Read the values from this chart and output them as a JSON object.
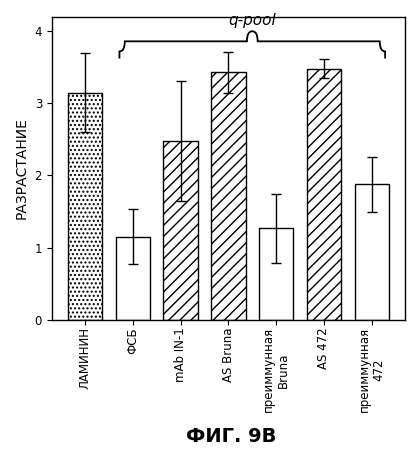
{
  "categories": [
    "ЛАМИНИН",
    "ФСБ",
    "mAb IN-1",
    "AS Bruna",
    "преиммунная\nBruna",
    "AS 472",
    "преиммунная\n472"
  ],
  "values": [
    3.15,
    1.15,
    2.48,
    3.43,
    1.27,
    3.48,
    1.88
  ],
  "errors": [
    0.55,
    0.38,
    0.83,
    0.28,
    0.48,
    0.13,
    0.38
  ],
  "bar_styles": [
    "dots",
    "none",
    "hatch",
    "hatch",
    "none",
    "hatch",
    "none"
  ],
  "title": "q-pool",
  "ylabel": "РАЗРАСТАНИЕ",
  "xlabel": "ФИГ. 9B",
  "ylim": [
    0,
    4.2
  ],
  "yticks": [
    0,
    1,
    2,
    3,
    4
  ],
  "background_color": "#ffffff",
  "title_fontsize": 11,
  "ylabel_fontsize": 10,
  "xlabel_fontsize": 14,
  "tick_fontsize": 8.5
}
